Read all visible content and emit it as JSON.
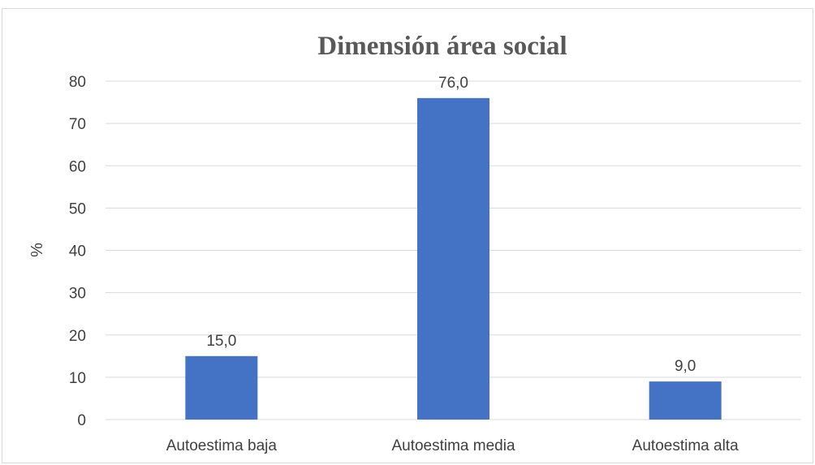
{
  "chart_data": {
    "type": "bar",
    "title": "Dimensión área social",
    "xlabel": "",
    "ylabel": "%",
    "categories": [
      "Autoestima baja",
      "Autoestima media",
      "Autoestima alta"
    ],
    "values": [
      15.0,
      76.0,
      9.0
    ],
    "data_labels": [
      "15,0",
      "76,0",
      "9,0"
    ],
    "ylim": [
      0,
      80
    ],
    "yticks": [
      0,
      10,
      20,
      30,
      40,
      50,
      60,
      70,
      80
    ],
    "grid": true,
    "legend": "none",
    "bar_color": "#4472C4"
  }
}
